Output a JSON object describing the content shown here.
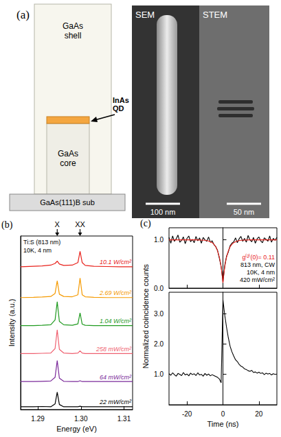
{
  "figure_a": {
    "label": "(a)",
    "schematic": {
      "shell": "GaAs shell",
      "qd": "InAs QD",
      "core": "GaAs core",
      "substrate": "GaAs(111)B sub"
    },
    "micrographs": [
      {
        "title": "SEM",
        "scale_bar": "100 nm"
      },
      {
        "title": "STEM",
        "scale_bar": "50 nm"
      }
    ]
  },
  "chart_data": [
    {
      "type": "line",
      "label": "(b)",
      "xlabel": "Energy (eV)",
      "ylabel": "Intensity (a.u.)",
      "x": [
        1.286,
        1.289,
        1.291,
        1.293,
        1.294,
        1.2945,
        1.295,
        1.296,
        1.298,
        1.2993,
        1.2998,
        1.3003,
        1.301,
        1.303,
        1.306,
        1.309,
        1.312
      ],
      "series": [
        {
          "name": "10.1 W/cm²",
          "color": "#e8201a",
          "values": [
            5.1,
            5.12,
            5.13,
            5.16,
            5.22,
            5.3,
            5.2,
            5.15,
            5.16,
            5.25,
            5.65,
            5.25,
            5.15,
            5.12,
            5.11,
            5.1,
            5.1
          ]
        },
        {
          "name": "2.69 W/cm²",
          "color": "#f59a00",
          "values": [
            4.0,
            4.01,
            4.02,
            4.04,
            4.15,
            4.6,
            4.12,
            4.04,
            4.03,
            4.1,
            4.7,
            4.1,
            4.03,
            4.01,
            4.0,
            4.0,
            4.0
          ]
        },
        {
          "name": "1.04 W/cm²",
          "color": "#1f9a1f",
          "values": [
            3.0,
            3.0,
            3.01,
            3.03,
            3.2,
            3.85,
            3.15,
            3.03,
            3.01,
            3.06,
            3.45,
            3.05,
            3.01,
            3.0,
            3.0,
            3.0,
            3.0
          ]
        },
        {
          "name": "258 mW/cm²",
          "color": "#ef5f6f",
          "values": [
            2.0,
            2.0,
            2.01,
            2.02,
            2.18,
            2.85,
            2.15,
            2.02,
            2.0,
            2.02,
            2.1,
            2.02,
            2.0,
            2.0,
            2.0,
            2.0,
            2.0
          ]
        },
        {
          "name": "64 mW/cm²",
          "color": "#7b2a9a",
          "values": [
            1.0,
            1.0,
            1.01,
            1.02,
            1.15,
            1.75,
            1.12,
            1.01,
            1.0,
            1.0,
            1.03,
            1.0,
            1.0,
            1.0,
            1.0,
            1.0,
            1.0
          ]
        },
        {
          "name": "22 mW/cm²",
          "color": "#000000",
          "values": [
            0.1,
            0.1,
            0.11,
            0.1,
            0.2,
            0.62,
            0.18,
            0.1,
            0.1,
            0.1,
            0.12,
            0.1,
            0.1,
            0.1,
            0.1,
            0.1,
            0.1
          ]
        }
      ],
      "xlim": [
        1.286,
        1.312
      ],
      "xticks": [
        1.29,
        {
          "value": 1.3,
          "label": "1.30"
        },
        1.31
      ],
      "ylim": [
        0,
        6.2
      ],
      "tick_labels": "x",
      "peak_markers": [
        {
          "text": "X",
          "x": 1.2945
        },
        {
          "text": "XX",
          "x": 1.2998
        }
      ],
      "annotations": [
        "Ti:S (813 nm)",
        "10K, 4 nm"
      ]
    },
    {
      "type": "line",
      "label": "(c)",
      "ylabel": "Normalized coincidence counts",
      "series": [
        {
          "color": "#000000",
          "x": [
            -30,
            -29,
            -28,
            -27,
            -26,
            -25,
            -24,
            -23,
            -22,
            -21,
            -20,
            -19,
            -18,
            -17,
            -16,
            -15,
            -14,
            -13,
            -12,
            -11,
            -10,
            -9,
            -8,
            -7,
            -6,
            -5,
            -4,
            -3,
            -2,
            -1,
            0,
            1,
            2,
            3,
            4,
            5,
            6,
            7,
            8,
            9,
            10,
            11,
            12,
            13,
            14,
            15,
            16,
            17,
            18,
            19,
            20,
            21,
            22,
            23,
            24,
            25,
            26,
            27,
            28,
            29,
            30
          ],
          "values": [
            1.05,
            0.93,
            1.08,
            0.97,
            1.02,
            1.1,
            0.95,
            0.99,
            1.06,
            0.92,
            1.03,
            1.08,
            0.96,
            1.01,
            0.94,
            1.07,
            0.98,
            1.04,
            0.93,
            1.05,
            1.0,
            0.97,
            1.06,
            0.95,
            0.98,
            0.9,
            0.86,
            0.78,
            0.62,
            0.45,
            0.12,
            0.47,
            0.66,
            0.75,
            0.88,
            0.93,
            0.96,
            1.04,
            0.94,
            1.02,
            1.07,
            0.97,
            1.03,
            0.95,
            1.09,
            1.0,
            0.96,
            1.05,
            0.93,
            1.02,
            1.06,
            0.98,
            0.94,
            1.04,
            1.01,
            0.97,
            1.08,
            0.95,
            1.03,
            0.99,
            1.05
          ]
        },
        {
          "color": "#e8201a",
          "x": [
            -30,
            -20,
            -15,
            -10,
            -8,
            -6,
            -5,
            -4,
            -3,
            -2,
            -1.5,
            -1,
            -0.5,
            0,
            0.5,
            1,
            1.5,
            2,
            3,
            4,
            5,
            6,
            8,
            10,
            15,
            20,
            30
          ],
          "values": [
            1.0,
            1.0,
            0.999,
            0.991,
            0.977,
            0.942,
            0.908,
            0.856,
            0.772,
            0.641,
            0.55,
            0.435,
            0.291,
            0.11,
            0.291,
            0.435,
            0.55,
            0.641,
            0.772,
            0.856,
            0.908,
            0.942,
            0.977,
            0.991,
            0.999,
            1.0,
            1.0
          ]
        }
      ],
      "xlim": [
        -30,
        30
      ],
      "xticks": [
        -20,
        0,
        20
      ],
      "ylim": [
        0,
        1.25
      ],
      "yticks": [
        {
          "value": 0,
          "label": "0.0"
        },
        {
          "value": 1,
          "label": "1.0"
        }
      ],
      "tick_labels": "y",
      "annotations": [
        {
          "text": "g⁽²⁾(0)= 0.11",
          "color": "#e8201a"
        },
        {
          "text": "813 nm, CW"
        },
        {
          "text": "10K, 4 nm"
        },
        {
          "text": "420 mW/cm²"
        }
      ]
    },
    {
      "type": "line",
      "xlabel": "Time (ns)",
      "series": [
        {
          "color": "#000000",
          "x": [
            -30,
            -29,
            -28,
            -27,
            -26,
            -25,
            -24,
            -23,
            -22,
            -21,
            -20,
            -19,
            -18,
            -17,
            -16,
            -15,
            -14,
            -13,
            -12,
            -11,
            -10,
            -9,
            -8,
            -7,
            -6,
            -5,
            -4,
            -3,
            -2,
            -1,
            0,
            1,
            2,
            3,
            4,
            5,
            6,
            7,
            8,
            9,
            10,
            11,
            12,
            13,
            14,
            15,
            16,
            17,
            18,
            19,
            20,
            21,
            22,
            23,
            24,
            25,
            26,
            27,
            28,
            29,
            30
          ],
          "values": [
            1.02,
            0.97,
            1.05,
            0.99,
            0.94,
            1.03,
            1.0,
            0.96,
            1.06,
            0.98,
            1.01,
            0.95,
            1.04,
            0.99,
            1.02,
            0.96,
            1.05,
            0.98,
            1.0,
            0.94,
            1.03,
            0.97,
            1.01,
            0.95,
            0.99,
            0.96,
            0.93,
            0.9,
            0.85,
            0.72,
            3.45,
            2.95,
            2.55,
            2.2,
            1.92,
            1.74,
            1.6,
            1.48,
            1.42,
            1.33,
            1.27,
            1.24,
            1.18,
            1.16,
            1.12,
            1.1,
            1.13,
            1.06,
            1.08,
            1.04,
            1.07,
            1.03,
            1.05,
            0.99,
            1.04,
            1.01,
            1.03,
            0.98,
            1.02,
            1.0,
            1.01
          ]
        }
      ],
      "xlim": [
        -30,
        30
      ],
      "xticks": [
        -20,
        0,
        20
      ],
      "ylim": [
        0,
        3.7
      ],
      "yticks": [
        {
          "value": 1,
          "label": "1.0"
        },
        {
          "value": 2,
          "label": "2.0"
        },
        {
          "value": 3,
          "label": "3.0"
        }
      ]
    }
  ]
}
